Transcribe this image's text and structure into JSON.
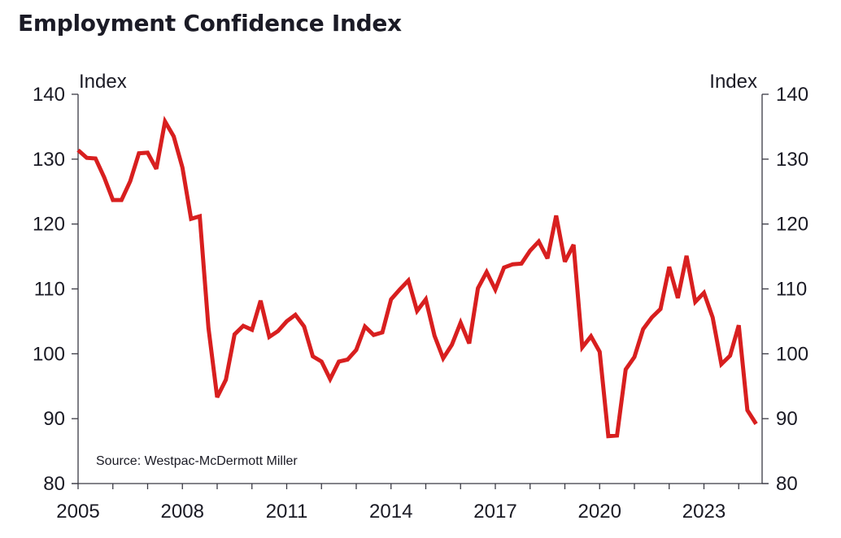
{
  "chart_data": {
    "type": "line",
    "title": "Employment Confidence Index",
    "xlabel": "",
    "ylabel_left": "Index",
    "ylabel_right": "Index",
    "ylim": [
      80,
      140
    ],
    "yticks": [
      80,
      90,
      100,
      110,
      120,
      130,
      140
    ],
    "xlim": [
      2005,
      2024.75
    ],
    "xticks": [
      2005,
      2008,
      2011,
      2014,
      2017,
      2020,
      2023
    ],
    "xticks_minor": [
      2005,
      2006,
      2007,
      2008,
      2009,
      2010,
      2011,
      2012,
      2013,
      2014,
      2015,
      2016,
      2017,
      2018,
      2019,
      2020,
      2021,
      2022,
      2023,
      2024
    ],
    "grid": false,
    "legend": "none",
    "annotation": "Source: Westpac-McDermott Miller",
    "series": [
      {
        "name": "Employment Confidence Index",
        "color": "#d81f1f",
        "x_start": 2005.0,
        "x_step": 0.25,
        "values": [
          131.4,
          130.2,
          130.1,
          127.2,
          123.7,
          123.7,
          126.6,
          130.9,
          131.0,
          128.5,
          135.8,
          133.5,
          128.7,
          120.8,
          121.2,
          104.0,
          93.3,
          96.0,
          103.0,
          104.3,
          103.7,
          108.2,
          102.6,
          103.5,
          105.0,
          106.0,
          104.2,
          99.6,
          98.8,
          96.1,
          98.8,
          99.1,
          100.6,
          104.2,
          102.9,
          103.3,
          108.4,
          109.9,
          111.3,
          106.6,
          108.4,
          102.8,
          99.3,
          101.4,
          104.8,
          101.6,
          110.1,
          112.6,
          109.9,
          113.3,
          113.8,
          113.9,
          115.9,
          117.3,
          114.7,
          121.3,
          114.2,
          116.8,
          101.0,
          102.7,
          100.3,
          87.3,
          87.4,
          97.6,
          99.5,
          103.8,
          105.6,
          106.9,
          113.4,
          108.6,
          115.1,
          108.0,
          109.4,
          105.6,
          98.4,
          99.7,
          104.4,
          91.3,
          89.2
        ]
      }
    ]
  },
  "colors": {
    "axis": "#3a3a44",
    "line": "#d81f1f",
    "text": "#1a1a24"
  }
}
